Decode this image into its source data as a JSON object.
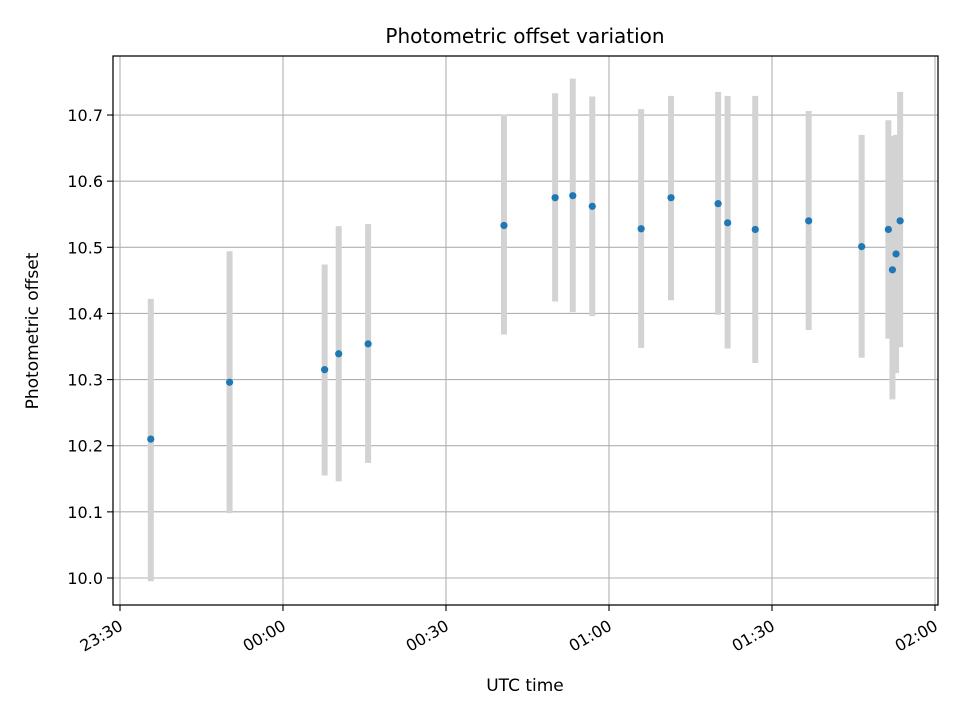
{
  "chart_data": {
    "type": "scatter",
    "title": "Photometric offset variation",
    "xlabel": "UTC time",
    "ylabel": "Photometric offset",
    "x_ticks": [
      "23:30",
      "00:00",
      "00:30",
      "01:00",
      "01:30",
      "02:00"
    ],
    "y_ticks": [
      "10.0",
      "10.1",
      "10.2",
      "10.3",
      "10.4",
      "10.5",
      "10.6",
      "10.7"
    ],
    "grid": true,
    "colors": {
      "points": "#1f77b4",
      "errorbars": "#d3d3d3",
      "grid": "#b0b0b0"
    },
    "series": [
      {
        "points": [
          {
            "x": "23:35:40",
            "y": 10.21,
            "err_low": 9.995,
            "err_high": 10.422
          },
          {
            "x": "23:50:10",
            "y": 10.296,
            "err_low": 10.098,
            "err_high": 10.494
          },
          {
            "x": "00:07:40",
            "y": 10.315,
            "err_low": 10.155,
            "err_high": 10.474
          },
          {
            "x": "00:10:15",
            "y": 10.339,
            "err_low": 10.146,
            "err_high": 10.532
          },
          {
            "x": "00:15:40",
            "y": 10.354,
            "err_low": 10.174,
            "err_high": 10.535
          },
          {
            "x": "00:40:40",
            "y": 10.533,
            "err_low": 10.368,
            "err_high": 10.701
          },
          {
            "x": "00:50:05",
            "y": 10.575,
            "err_low": 10.418,
            "err_high": 10.733
          },
          {
            "x": "00:53:20",
            "y": 10.578,
            "err_low": 10.402,
            "err_high": 10.755
          },
          {
            "x": "00:56:55",
            "y": 10.562,
            "err_low": 10.396,
            "err_high": 10.728
          },
          {
            "x": "01:05:55",
            "y": 10.528,
            "err_low": 10.348,
            "err_high": 10.709
          },
          {
            "x": "01:11:25",
            "y": 10.575,
            "err_low": 10.42,
            "err_high": 10.729
          },
          {
            "x": "01:20:05",
            "y": 10.566,
            "err_low": 10.398,
            "err_high": 10.735
          },
          {
            "x": "01:21:50",
            "y": 10.537,
            "err_low": 10.347,
            "err_high": 10.729
          },
          {
            "x": "01:26:55",
            "y": 10.527,
            "err_low": 10.325,
            "err_high": 10.729
          },
          {
            "x": "01:36:45",
            "y": 10.54,
            "err_low": 10.375,
            "err_high": 10.706
          },
          {
            "x": "01:46:30",
            "y": 10.501,
            "err_low": 10.333,
            "err_high": 10.67
          },
          {
            "x": "01:51:25",
            "y": 10.527,
            "err_low": 10.362,
            "err_high": 10.692
          },
          {
            "x": "01:52:10",
            "y": 10.466,
            "err_low": 10.27,
            "err_high": 10.668
          },
          {
            "x": "01:52:50",
            "y": 10.49,
            "err_low": 10.31,
            "err_high": 10.67
          },
          {
            "x": "01:53:35",
            "y": 10.54,
            "err_low": 10.349,
            "err_high": 10.735
          }
        ]
      }
    ]
  }
}
